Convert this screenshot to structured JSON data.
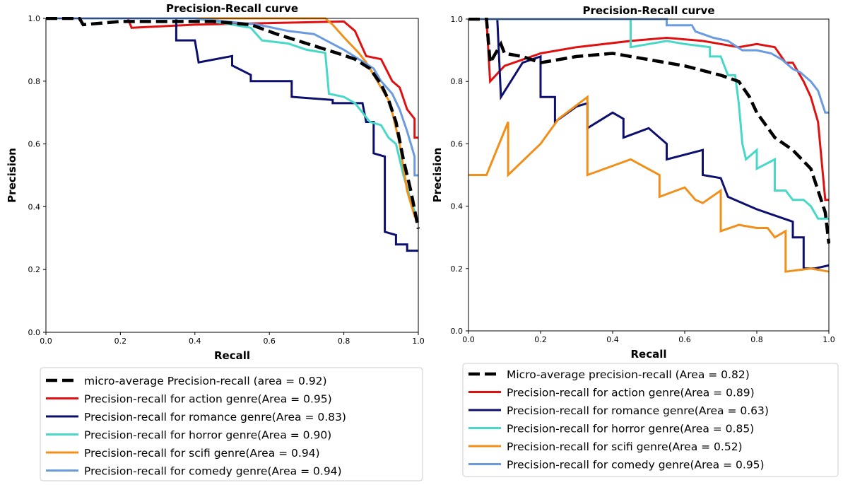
{
  "chart_data": [
    {
      "type": "line",
      "title": "Precision-Recall curve",
      "xlabel": "Recall",
      "ylabel": "Precision",
      "xlim": [
        0,
        1
      ],
      "ylim": [
        0,
        1
      ],
      "xticks": [
        "0.0",
        "0.2",
        "0.4",
        "0.6",
        "0.8",
        "1.0"
      ],
      "yticks": [
        "0.0",
        "0.2",
        "0.4",
        "0.6",
        "0.8",
        "1.0"
      ],
      "grid": false,
      "legend_position": "below",
      "series": [
        {
          "name": "micro-average Precision-recall (area = 0.92)",
          "color": "#000000",
          "dashed": true,
          "points": [
            [
              0.0,
              1.0
            ],
            [
              0.09,
              1.0
            ],
            [
              0.1,
              0.98
            ],
            [
              0.2,
              0.99
            ],
            [
              0.3,
              0.99
            ],
            [
              0.45,
              0.99
            ],
            [
              0.55,
              0.98
            ],
            [
              0.62,
              0.95
            ],
            [
              0.7,
              0.92
            ],
            [
              0.78,
              0.89
            ],
            [
              0.83,
              0.87
            ],
            [
              0.87,
              0.84
            ],
            [
              0.9,
              0.79
            ],
            [
              0.92,
              0.74
            ],
            [
              0.94,
              0.67
            ],
            [
              0.96,
              0.55
            ],
            [
              0.98,
              0.45
            ],
            [
              1.0,
              0.33
            ]
          ]
        },
        {
          "name": "Precision-recall for action genre(Area = 0.95)",
          "color": "#e01010",
          "points": [
            [
              0.0,
              1.0
            ],
            [
              0.22,
              1.0
            ],
            [
              0.23,
              0.97
            ],
            [
              0.4,
              0.98
            ],
            [
              0.8,
              0.99
            ],
            [
              0.83,
              0.96
            ],
            [
              0.86,
              0.88
            ],
            [
              0.9,
              0.87
            ],
            [
              0.93,
              0.8
            ],
            [
              0.95,
              0.78
            ],
            [
              0.97,
              0.71
            ],
            [
              0.99,
              0.68
            ],
            [
              0.99,
              0.62
            ],
            [
              1.0,
              0.62
            ]
          ]
        },
        {
          "name": "Precision-recall for romance genre(Area = 0.83)",
          "color": "#0c0f6e",
          "points": [
            [
              0.0,
              1.0
            ],
            [
              0.35,
              1.0
            ],
            [
              0.35,
              0.93
            ],
            [
              0.4,
              0.93
            ],
            [
              0.41,
              0.86
            ],
            [
              0.5,
              0.88
            ],
            [
              0.5,
              0.85
            ],
            [
              0.55,
              0.82
            ],
            [
              0.55,
              0.8
            ],
            [
              0.66,
              0.8
            ],
            [
              0.66,
              0.75
            ],
            [
              0.77,
              0.74
            ],
            [
              0.77,
              0.73
            ],
            [
              0.85,
              0.73
            ],
            [
              0.86,
              0.67
            ],
            [
              0.88,
              0.67
            ],
            [
              0.88,
              0.57
            ],
            [
              0.91,
              0.56
            ],
            [
              0.91,
              0.32
            ],
            [
              0.94,
              0.31
            ],
            [
              0.94,
              0.28
            ],
            [
              0.97,
              0.28
            ],
            [
              0.97,
              0.26
            ],
            [
              1.0,
              0.26
            ]
          ]
        },
        {
          "name": "Precision-recall for horror genre(Area = 0.90)",
          "color": "#48d8c8",
          "points": [
            [
              0.0,
              1.0
            ],
            [
              0.4,
              1.0
            ],
            [
              0.55,
              0.97
            ],
            [
              0.58,
              0.93
            ],
            [
              0.65,
              0.92
            ],
            [
              0.7,
              0.9
            ],
            [
              0.75,
              0.89
            ],
            [
              0.76,
              0.76
            ],
            [
              0.8,
              0.75
            ],
            [
              0.83,
              0.73
            ],
            [
              0.85,
              0.7
            ],
            [
              0.87,
              0.67
            ],
            [
              0.9,
              0.66
            ],
            [
              0.92,
              0.62
            ],
            [
              0.94,
              0.6
            ],
            [
              0.96,
              0.5
            ],
            [
              0.98,
              0.42
            ],
            [
              1.0,
              0.35
            ]
          ]
        },
        {
          "name": "Precision-recall for scifi genre(Area = 0.94)",
          "color": "#f0901a",
          "points": [
            [
              0.0,
              1.0
            ],
            [
              0.6,
              1.0
            ],
            [
              0.75,
              1.0
            ],
            [
              0.77,
              0.98
            ],
            [
              0.8,
              0.94
            ],
            [
              0.84,
              0.89
            ],
            [
              0.86,
              0.86
            ],
            [
              0.88,
              0.82
            ],
            [
              0.9,
              0.78
            ],
            [
              0.92,
              0.74
            ],
            [
              0.93,
              0.7
            ],
            [
              0.95,
              0.6
            ],
            [
              0.97,
              0.45
            ],
            [
              0.99,
              0.37
            ],
            [
              1.0,
              0.35
            ]
          ]
        },
        {
          "name": "Precision-recall for comedy genre(Area = 0.94)",
          "color": "#6a9ae0",
          "points": [
            [
              0.0,
              1.0
            ],
            [
              0.4,
              1.0
            ],
            [
              0.57,
              0.98
            ],
            [
              0.65,
              0.96
            ],
            [
              0.72,
              0.95
            ],
            [
              0.8,
              0.9
            ],
            [
              0.84,
              0.87
            ],
            [
              0.88,
              0.84
            ],
            [
              0.9,
              0.8
            ],
            [
              0.93,
              0.76
            ],
            [
              0.95,
              0.71
            ],
            [
              0.97,
              0.64
            ],
            [
              0.99,
              0.56
            ],
            [
              0.99,
              0.5
            ],
            [
              1.0,
              0.5
            ]
          ]
        }
      ]
    },
    {
      "type": "line",
      "title": "Precision-Recall curve",
      "xlabel": "Recall",
      "ylabel": "Precision",
      "xlim": [
        0,
        1
      ],
      "ylim": [
        0,
        1
      ],
      "xticks": [
        "0.0",
        "0.2",
        "0.4",
        "0.6",
        "0.8",
        "1.0"
      ],
      "yticks": [
        "0.0",
        "0.2",
        "0.4",
        "0.6",
        "0.8",
        "1.0"
      ],
      "grid": false,
      "legend_position": "below",
      "series": [
        {
          "name": "Micro-average precision-recall (Area = 0.82)",
          "color": "#000000",
          "dashed": true,
          "points": [
            [
              0.0,
              1.0
            ],
            [
              0.05,
              1.0
            ],
            [
              0.06,
              0.86
            ],
            [
              0.09,
              0.92
            ],
            [
              0.1,
              0.89
            ],
            [
              0.15,
              0.88
            ],
            [
              0.2,
              0.86
            ],
            [
              0.3,
              0.88
            ],
            [
              0.4,
              0.89
            ],
            [
              0.5,
              0.87
            ],
            [
              0.6,
              0.85
            ],
            [
              0.7,
              0.82
            ],
            [
              0.75,
              0.8
            ],
            [
              0.78,
              0.75
            ],
            [
              0.8,
              0.7
            ],
            [
              0.85,
              0.62
            ],
            [
              0.9,
              0.58
            ],
            [
              0.95,
              0.52
            ],
            [
              0.97,
              0.45
            ],
            [
              0.99,
              0.38
            ],
            [
              1.0,
              0.28
            ]
          ]
        },
        {
          "name": "Precision-recall for action genre(Area = 0.89)",
          "color": "#e01010",
          "points": [
            [
              0.0,
              1.0
            ],
            [
              0.05,
              1.0
            ],
            [
              0.06,
              0.8
            ],
            [
              0.1,
              0.85
            ],
            [
              0.2,
              0.89
            ],
            [
              0.3,
              0.91
            ],
            [
              0.45,
              0.93
            ],
            [
              0.55,
              0.94
            ],
            [
              0.65,
              0.93
            ],
            [
              0.75,
              0.91
            ],
            [
              0.8,
              0.92
            ],
            [
              0.85,
              0.91
            ],
            [
              0.88,
              0.86
            ],
            [
              0.9,
              0.86
            ],
            [
              0.93,
              0.8
            ],
            [
              0.95,
              0.75
            ],
            [
              0.97,
              0.67
            ],
            [
              0.99,
              0.42
            ],
            [
              1.0,
              0.42
            ]
          ]
        },
        {
          "name": "Precision-recall for romance genre(Area = 0.63)",
          "color": "#0c0f6e",
          "points": [
            [
              0.0,
              1.0
            ],
            [
              0.08,
              1.0
            ],
            [
              0.09,
              0.75
            ],
            [
              0.15,
              0.86
            ],
            [
              0.2,
              0.88
            ],
            [
              0.2,
              0.75
            ],
            [
              0.24,
              0.75
            ],
            [
              0.24,
              0.67
            ],
            [
              0.3,
              0.72
            ],
            [
              0.33,
              0.73
            ],
            [
              0.33,
              0.65
            ],
            [
              0.4,
              0.7
            ],
            [
              0.43,
              0.68
            ],
            [
              0.43,
              0.62
            ],
            [
              0.5,
              0.65
            ],
            [
              0.55,
              0.6
            ],
            [
              0.55,
              0.55
            ],
            [
              0.65,
              0.58
            ],
            [
              0.65,
              0.5
            ],
            [
              0.7,
              0.49
            ],
            [
              0.72,
              0.43
            ],
            [
              0.78,
              0.4
            ],
            [
              0.8,
              0.39
            ],
            [
              0.85,
              0.37
            ],
            [
              0.9,
              0.35
            ],
            [
              0.9,
              0.3
            ],
            [
              0.93,
              0.3
            ],
            [
              0.93,
              0.2
            ],
            [
              0.96,
              0.2
            ],
            [
              1.0,
              0.21
            ]
          ]
        },
        {
          "name": "Precision-recall for horror genre(Area = 0.85)",
          "color": "#48d8c8",
          "points": [
            [
              0.0,
              1.0
            ],
            [
              0.45,
              1.0
            ],
            [
              0.45,
              0.91
            ],
            [
              0.55,
              0.93
            ],
            [
              0.6,
              0.92
            ],
            [
              0.67,
              0.91
            ],
            [
              0.67,
              0.88
            ],
            [
              0.7,
              0.88
            ],
            [
              0.72,
              0.82
            ],
            [
              0.74,
              0.82
            ],
            [
              0.75,
              0.73
            ],
            [
              0.76,
              0.6
            ],
            [
              0.77,
              0.55
            ],
            [
              0.8,
              0.58
            ],
            [
              0.8,
              0.52
            ],
            [
              0.85,
              0.55
            ],
            [
              0.85,
              0.45
            ],
            [
              0.88,
              0.45
            ],
            [
              0.9,
              0.42
            ],
            [
              0.93,
              0.42
            ],
            [
              0.95,
              0.4
            ],
            [
              0.97,
              0.36
            ],
            [
              1.0,
              0.36
            ]
          ]
        },
        {
          "name": "Precision-recall for scifi genre(Area = 0.52)",
          "color": "#f0901a",
          "points": [
            [
              0.0,
              0.5
            ],
            [
              0.05,
              0.5
            ],
            [
              0.11,
              0.67
            ],
            [
              0.11,
              0.5
            ],
            [
              0.2,
              0.6
            ],
            [
              0.25,
              0.68
            ],
            [
              0.33,
              0.75
            ],
            [
              0.33,
              0.5
            ],
            [
              0.45,
              0.55
            ],
            [
              0.53,
              0.5
            ],
            [
              0.53,
              0.43
            ],
            [
              0.6,
              0.46
            ],
            [
              0.63,
              0.42
            ],
            [
              0.65,
              0.41
            ],
            [
              0.7,
              0.45
            ],
            [
              0.7,
              0.32
            ],
            [
              0.75,
              0.34
            ],
            [
              0.8,
              0.33
            ],
            [
              0.83,
              0.33
            ],
            [
              0.85,
              0.3
            ],
            [
              0.88,
              0.32
            ],
            [
              0.88,
              0.19
            ],
            [
              0.95,
              0.2
            ],
            [
              1.0,
              0.19
            ]
          ]
        },
        {
          "name": "Precision-recall for comedy genre(Area = 0.95)",
          "color": "#6a9ae0",
          "points": [
            [
              0.0,
              1.0
            ],
            [
              0.55,
              1.0
            ],
            [
              0.55,
              0.98
            ],
            [
              0.62,
              0.98
            ],
            [
              0.63,
              0.96
            ],
            [
              0.68,
              0.94
            ],
            [
              0.72,
              0.93
            ],
            [
              0.76,
              0.9
            ],
            [
              0.8,
              0.9
            ],
            [
              0.84,
              0.89
            ],
            [
              0.87,
              0.87
            ],
            [
              0.9,
              0.84
            ],
            [
              0.92,
              0.83
            ],
            [
              0.95,
              0.8
            ],
            [
              0.97,
              0.77
            ],
            [
              0.99,
              0.7
            ],
            [
              1.0,
              0.7
            ]
          ]
        }
      ]
    }
  ]
}
